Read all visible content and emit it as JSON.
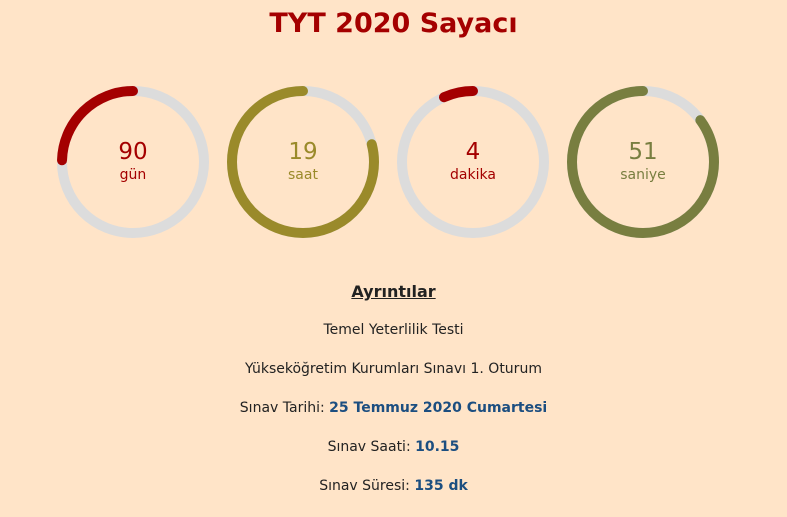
{
  "title": "TYT 2020 Sayacı",
  "counters": [
    {
      "value": "90",
      "unit": "gün",
      "color": "#a40000",
      "fraction": 0.246
    },
    {
      "value": "19",
      "unit": "saat",
      "color": "#9a8a2a",
      "fraction": 0.79
    },
    {
      "value": "4",
      "unit": "dakika",
      "color": "#a40000",
      "fraction": 0.067
    },
    {
      "value": "51",
      "unit": "saniye",
      "color": "#787e40",
      "fraction": 0.85
    }
  ],
  "track_color": "#dcdcdc",
  "details": {
    "heading": "Ayrıntılar",
    "line1": "Temel Yeterlilik Testi",
    "line2": "Yükseköğretim Kurumları Sınavı 1. Oturum",
    "date_label": "Sınav Tarihi:",
    "date_value": "25 Temmuz 2020 Cumartesi",
    "time_label": "Sınav Saati:",
    "time_value": "10.15",
    "duration_label": "Sınav Süresi:",
    "duration_value": "135 dk"
  }
}
